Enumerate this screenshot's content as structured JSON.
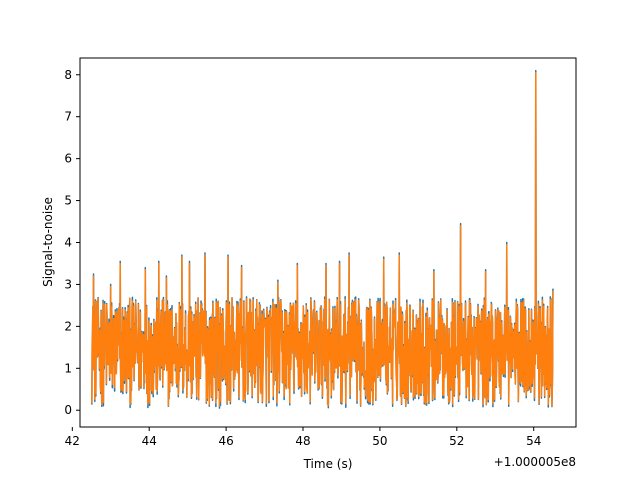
{
  "chart_data": {
    "type": "line",
    "title": "",
    "xlabel": "Time (s)",
    "ylabel": "Signal-to-noise",
    "x_offset_label": "+1.000005e8",
    "xlim": [
      42.2,
      55.1
    ],
    "ylim": [
      -0.4,
      8.4
    ],
    "x_ticks": [
      42,
      44,
      46,
      48,
      50,
      52,
      54
    ],
    "x_tick_labels": [
      "42",
      "44",
      "46",
      "48",
      "50",
      "52",
      "54"
    ],
    "y_ticks": [
      0,
      1,
      2,
      3,
      4,
      5,
      6,
      7,
      8
    ],
    "y_tick_labels": [
      "0",
      "1",
      "2",
      "3",
      "4",
      "5",
      "6",
      "7",
      "8"
    ],
    "grid": false,
    "series": [
      {
        "color": "#1f77b4",
        "x_range": [
          42.5,
          54.5
        ],
        "baseline_range": [
          0.05,
          2.7
        ],
        "peaks": [
          {
            "x": 42.55,
            "y": 3.25
          },
          {
            "x": 43.0,
            "y": 3.0
          },
          {
            "x": 43.25,
            "y": 3.55
          },
          {
            "x": 43.9,
            "y": 3.4
          },
          {
            "x": 44.25,
            "y": 3.55
          },
          {
            "x": 44.45,
            "y": 3.2
          },
          {
            "x": 44.85,
            "y": 3.7
          },
          {
            "x": 45.05,
            "y": 3.55
          },
          {
            "x": 45.45,
            "y": 3.75
          },
          {
            "x": 46.05,
            "y": 3.7
          },
          {
            "x": 46.4,
            "y": 3.45
          },
          {
            "x": 47.35,
            "y": 3.1
          },
          {
            "x": 47.85,
            "y": 3.5
          },
          {
            "x": 48.6,
            "y": 3.5
          },
          {
            "x": 48.95,
            "y": 3.55
          },
          {
            "x": 49.2,
            "y": 3.75
          },
          {
            "x": 50.1,
            "y": 3.65
          },
          {
            "x": 50.5,
            "y": 3.75
          },
          {
            "x": 51.4,
            "y": 3.35
          },
          {
            "x": 52.1,
            "y": 4.45
          },
          {
            "x": 52.75,
            "y": 3.35
          },
          {
            "x": 53.3,
            "y": 4.0
          },
          {
            "x": 54.05,
            "y": 8.1
          },
          {
            "x": 54.5,
            "y": 2.9
          }
        ]
      },
      {
        "color": "#ff7f0e",
        "x_range": [
          42.5,
          54.5
        ],
        "baseline_range": [
          0.1,
          2.65
        ],
        "peaks": [
          {
            "x": 42.55,
            "y": 3.2
          },
          {
            "x": 43.0,
            "y": 2.95
          },
          {
            "x": 43.25,
            "y": 3.5
          },
          {
            "x": 43.9,
            "y": 3.35
          },
          {
            "x": 44.25,
            "y": 3.5
          },
          {
            "x": 44.45,
            "y": 3.15
          },
          {
            "x": 44.85,
            "y": 3.65
          },
          {
            "x": 45.05,
            "y": 3.5
          },
          {
            "x": 45.45,
            "y": 3.7
          },
          {
            "x": 46.05,
            "y": 3.65
          },
          {
            "x": 46.4,
            "y": 3.4
          },
          {
            "x": 47.35,
            "y": 3.05
          },
          {
            "x": 47.85,
            "y": 3.45
          },
          {
            "x": 48.6,
            "y": 3.45
          },
          {
            "x": 48.95,
            "y": 3.5
          },
          {
            "x": 49.2,
            "y": 3.7
          },
          {
            "x": 50.1,
            "y": 3.6
          },
          {
            "x": 50.5,
            "y": 3.7
          },
          {
            "x": 51.4,
            "y": 3.3
          },
          {
            "x": 52.1,
            "y": 4.4
          },
          {
            "x": 52.75,
            "y": 3.3
          },
          {
            "x": 53.3,
            "y": 3.95
          },
          {
            "x": 54.05,
            "y": 8.05
          },
          {
            "x": 54.5,
            "y": 2.85
          }
        ]
      }
    ]
  }
}
